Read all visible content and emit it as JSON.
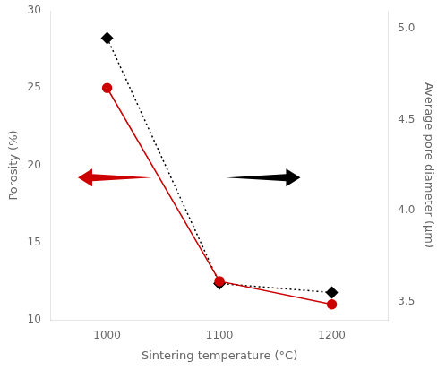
{
  "chart_data": {
    "type": "line",
    "x": [
      1000,
      1100,
      1200
    ],
    "xlabel": "Sintering temperature (°C)",
    "ylabel": "Porosity (%)",
    "y2label": "Average pore diameter (μm)",
    "xlim": [
      950,
      1250
    ],
    "xticks": [
      1000,
      1100,
      1200
    ],
    "ylim": [
      10,
      30
    ],
    "yticks": [
      10,
      15,
      20,
      25,
      30
    ],
    "y2lim": [
      3.4,
      5.1
    ],
    "y2ticks": [
      3.5,
      {
        "value": 4.0,
        "label": "4.0"
      },
      4.5,
      {
        "value": 5.0,
        "label": "5.0"
      }
    ],
    "grid": false,
    "series": [
      {
        "values": [
          25.0,
          12.5,
          11.0
        ],
        "color": "#cc0000",
        "marker": "circle",
        "line_style": "solid",
        "axis": "y"
      },
      {
        "values": [
          4.95,
          3.6,
          3.55
        ],
        "color": "#000000",
        "marker": "diamond",
        "line_style": "dotted",
        "axis": "y2"
      }
    ]
  }
}
